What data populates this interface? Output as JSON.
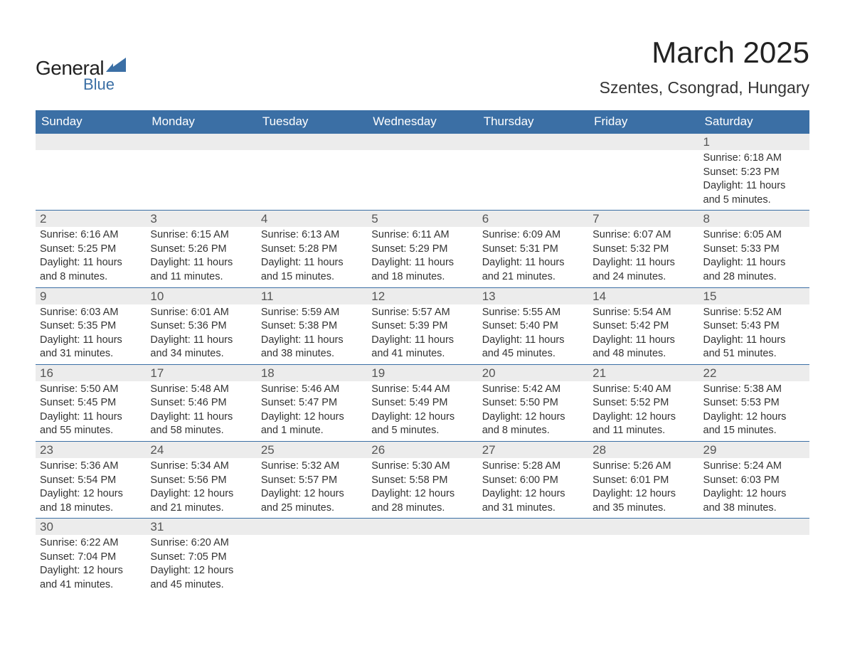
{
  "logo": {
    "general": "General",
    "blue": "Blue"
  },
  "title": "March 2025",
  "location": "Szentes, Csongrad, Hungary",
  "colors": {
    "header_bg": "#3b6fa5",
    "header_fg": "#ffffff",
    "daynum_bg": "#ececec",
    "row_border": "#3b6fa5",
    "page_bg": "#ffffff",
    "text": "#333333"
  },
  "typography": {
    "font_family": "Arial, Helvetica, sans-serif",
    "title_fontsize": 42,
    "location_fontsize": 23,
    "header_fontsize": 17,
    "daynum_fontsize": 17,
    "body_fontsize": 14.5
  },
  "columns": [
    "Sunday",
    "Monday",
    "Tuesday",
    "Wednesday",
    "Thursday",
    "Friday",
    "Saturday"
  ],
  "weeks": [
    [
      null,
      null,
      null,
      null,
      null,
      null,
      {
        "n": "1",
        "sr": "Sunrise: 6:18 AM",
        "ss": "Sunset: 5:23 PM",
        "dl": "Daylight: 11 hours and 5 minutes."
      }
    ],
    [
      {
        "n": "2",
        "sr": "Sunrise: 6:16 AM",
        "ss": "Sunset: 5:25 PM",
        "dl": "Daylight: 11 hours and 8 minutes."
      },
      {
        "n": "3",
        "sr": "Sunrise: 6:15 AM",
        "ss": "Sunset: 5:26 PM",
        "dl": "Daylight: 11 hours and 11 minutes."
      },
      {
        "n": "4",
        "sr": "Sunrise: 6:13 AM",
        "ss": "Sunset: 5:28 PM",
        "dl": "Daylight: 11 hours and 15 minutes."
      },
      {
        "n": "5",
        "sr": "Sunrise: 6:11 AM",
        "ss": "Sunset: 5:29 PM",
        "dl": "Daylight: 11 hours and 18 minutes."
      },
      {
        "n": "6",
        "sr": "Sunrise: 6:09 AM",
        "ss": "Sunset: 5:31 PM",
        "dl": "Daylight: 11 hours and 21 minutes."
      },
      {
        "n": "7",
        "sr": "Sunrise: 6:07 AM",
        "ss": "Sunset: 5:32 PM",
        "dl": "Daylight: 11 hours and 24 minutes."
      },
      {
        "n": "8",
        "sr": "Sunrise: 6:05 AM",
        "ss": "Sunset: 5:33 PM",
        "dl": "Daylight: 11 hours and 28 minutes."
      }
    ],
    [
      {
        "n": "9",
        "sr": "Sunrise: 6:03 AM",
        "ss": "Sunset: 5:35 PM",
        "dl": "Daylight: 11 hours and 31 minutes."
      },
      {
        "n": "10",
        "sr": "Sunrise: 6:01 AM",
        "ss": "Sunset: 5:36 PM",
        "dl": "Daylight: 11 hours and 34 minutes."
      },
      {
        "n": "11",
        "sr": "Sunrise: 5:59 AM",
        "ss": "Sunset: 5:38 PM",
        "dl": "Daylight: 11 hours and 38 minutes."
      },
      {
        "n": "12",
        "sr": "Sunrise: 5:57 AM",
        "ss": "Sunset: 5:39 PM",
        "dl": "Daylight: 11 hours and 41 minutes."
      },
      {
        "n": "13",
        "sr": "Sunrise: 5:55 AM",
        "ss": "Sunset: 5:40 PM",
        "dl": "Daylight: 11 hours and 45 minutes."
      },
      {
        "n": "14",
        "sr": "Sunrise: 5:54 AM",
        "ss": "Sunset: 5:42 PM",
        "dl": "Daylight: 11 hours and 48 minutes."
      },
      {
        "n": "15",
        "sr": "Sunrise: 5:52 AM",
        "ss": "Sunset: 5:43 PM",
        "dl": "Daylight: 11 hours and 51 minutes."
      }
    ],
    [
      {
        "n": "16",
        "sr": "Sunrise: 5:50 AM",
        "ss": "Sunset: 5:45 PM",
        "dl": "Daylight: 11 hours and 55 minutes."
      },
      {
        "n": "17",
        "sr": "Sunrise: 5:48 AM",
        "ss": "Sunset: 5:46 PM",
        "dl": "Daylight: 11 hours and 58 minutes."
      },
      {
        "n": "18",
        "sr": "Sunrise: 5:46 AM",
        "ss": "Sunset: 5:47 PM",
        "dl": "Daylight: 12 hours and 1 minute."
      },
      {
        "n": "19",
        "sr": "Sunrise: 5:44 AM",
        "ss": "Sunset: 5:49 PM",
        "dl": "Daylight: 12 hours and 5 minutes."
      },
      {
        "n": "20",
        "sr": "Sunrise: 5:42 AM",
        "ss": "Sunset: 5:50 PM",
        "dl": "Daylight: 12 hours and 8 minutes."
      },
      {
        "n": "21",
        "sr": "Sunrise: 5:40 AM",
        "ss": "Sunset: 5:52 PM",
        "dl": "Daylight: 12 hours and 11 minutes."
      },
      {
        "n": "22",
        "sr": "Sunrise: 5:38 AM",
        "ss": "Sunset: 5:53 PM",
        "dl": "Daylight: 12 hours and 15 minutes."
      }
    ],
    [
      {
        "n": "23",
        "sr": "Sunrise: 5:36 AM",
        "ss": "Sunset: 5:54 PM",
        "dl": "Daylight: 12 hours and 18 minutes."
      },
      {
        "n": "24",
        "sr": "Sunrise: 5:34 AM",
        "ss": "Sunset: 5:56 PM",
        "dl": "Daylight: 12 hours and 21 minutes."
      },
      {
        "n": "25",
        "sr": "Sunrise: 5:32 AM",
        "ss": "Sunset: 5:57 PM",
        "dl": "Daylight: 12 hours and 25 minutes."
      },
      {
        "n": "26",
        "sr": "Sunrise: 5:30 AM",
        "ss": "Sunset: 5:58 PM",
        "dl": "Daylight: 12 hours and 28 minutes."
      },
      {
        "n": "27",
        "sr": "Sunrise: 5:28 AM",
        "ss": "Sunset: 6:00 PM",
        "dl": "Daylight: 12 hours and 31 minutes."
      },
      {
        "n": "28",
        "sr": "Sunrise: 5:26 AM",
        "ss": "Sunset: 6:01 PM",
        "dl": "Daylight: 12 hours and 35 minutes."
      },
      {
        "n": "29",
        "sr": "Sunrise: 5:24 AM",
        "ss": "Sunset: 6:03 PM",
        "dl": "Daylight: 12 hours and 38 minutes."
      }
    ],
    [
      {
        "n": "30",
        "sr": "Sunrise: 6:22 AM",
        "ss": "Sunset: 7:04 PM",
        "dl": "Daylight: 12 hours and 41 minutes."
      },
      {
        "n": "31",
        "sr": "Sunrise: 6:20 AM",
        "ss": "Sunset: 7:05 PM",
        "dl": "Daylight: 12 hours and 45 minutes."
      },
      null,
      null,
      null,
      null,
      null
    ]
  ]
}
